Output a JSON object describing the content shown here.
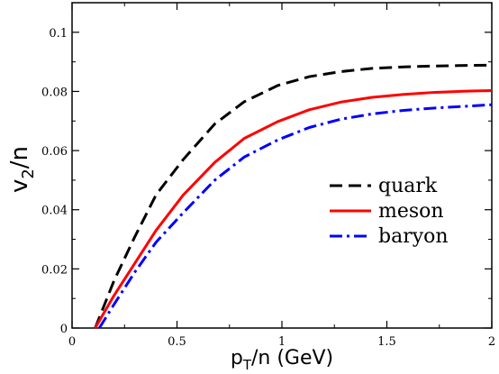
{
  "chart_data": {
    "type": "line",
    "xlabel_main": "p",
    "xlabel_sub": "T",
    "xlabel_rest": "/n (GeV)",
    "ylabel_main": "v",
    "ylabel_sub": "2",
    "ylabel_rest": "/n",
    "xlim": [
      0,
      2
    ],
    "ylim": [
      0,
      0.11
    ],
    "xticks": [
      0,
      0.5,
      1,
      1.5,
      2
    ],
    "xtick_labels": [
      "0",
      "0.5",
      "1",
      "1.5",
      "2"
    ],
    "yticks": [
      0,
      0.02,
      0.04,
      0.06,
      0.08,
      0.1
    ],
    "ytick_labels": [
      "0",
      "0.02",
      "0.04",
      "0.06",
      "0.08",
      "0.1"
    ],
    "grid": false,
    "legend_position": "right",
    "series": [
      {
        "name": "quark",
        "color": "#000000",
        "dash": "dashed",
        "points": [
          [
            0.11,
            0
          ],
          [
            0.2,
            0.016
          ],
          [
            0.3,
            0.031
          ],
          [
            0.4,
            0.045
          ],
          [
            0.53,
            0.057
          ],
          [
            0.68,
            0.069
          ],
          [
            0.82,
            0.0765
          ],
          [
            0.98,
            0.082
          ],
          [
            1.13,
            0.085
          ],
          [
            1.28,
            0.0867
          ],
          [
            1.43,
            0.0878
          ],
          [
            1.58,
            0.0883
          ],
          [
            1.73,
            0.0886
          ],
          [
            1.88,
            0.0888
          ],
          [
            2.0,
            0.0889
          ]
        ]
      },
      {
        "name": "meson",
        "color": "#ff0000",
        "dash": "solid",
        "points": [
          [
            0.11,
            0
          ],
          [
            0.2,
            0.011
          ],
          [
            0.3,
            0.022
          ],
          [
            0.4,
            0.033
          ],
          [
            0.53,
            0.045
          ],
          [
            0.68,
            0.056
          ],
          [
            0.82,
            0.0641
          ],
          [
            0.98,
            0.0698
          ],
          [
            1.13,
            0.0738
          ],
          [
            1.28,
            0.0764
          ],
          [
            1.43,
            0.078
          ],
          [
            1.58,
            0.079
          ],
          [
            1.73,
            0.0797
          ],
          [
            1.88,
            0.0801
          ],
          [
            2.0,
            0.0803
          ]
        ]
      },
      {
        "name": "baryon",
        "color": "#0000ff",
        "dash": "dashdot",
        "points": [
          [
            0.13,
            0
          ],
          [
            0.2,
            0.008
          ],
          [
            0.3,
            0.019
          ],
          [
            0.4,
            0.029
          ],
          [
            0.53,
            0.039
          ],
          [
            0.68,
            0.05
          ],
          [
            0.82,
            0.0578
          ],
          [
            0.98,
            0.0636
          ],
          [
            1.13,
            0.0678
          ],
          [
            1.28,
            0.0706
          ],
          [
            1.43,
            0.0724
          ],
          [
            1.58,
            0.0736
          ],
          [
            1.73,
            0.0744
          ],
          [
            1.88,
            0.075
          ],
          [
            2.0,
            0.0755
          ]
        ]
      }
    ]
  }
}
